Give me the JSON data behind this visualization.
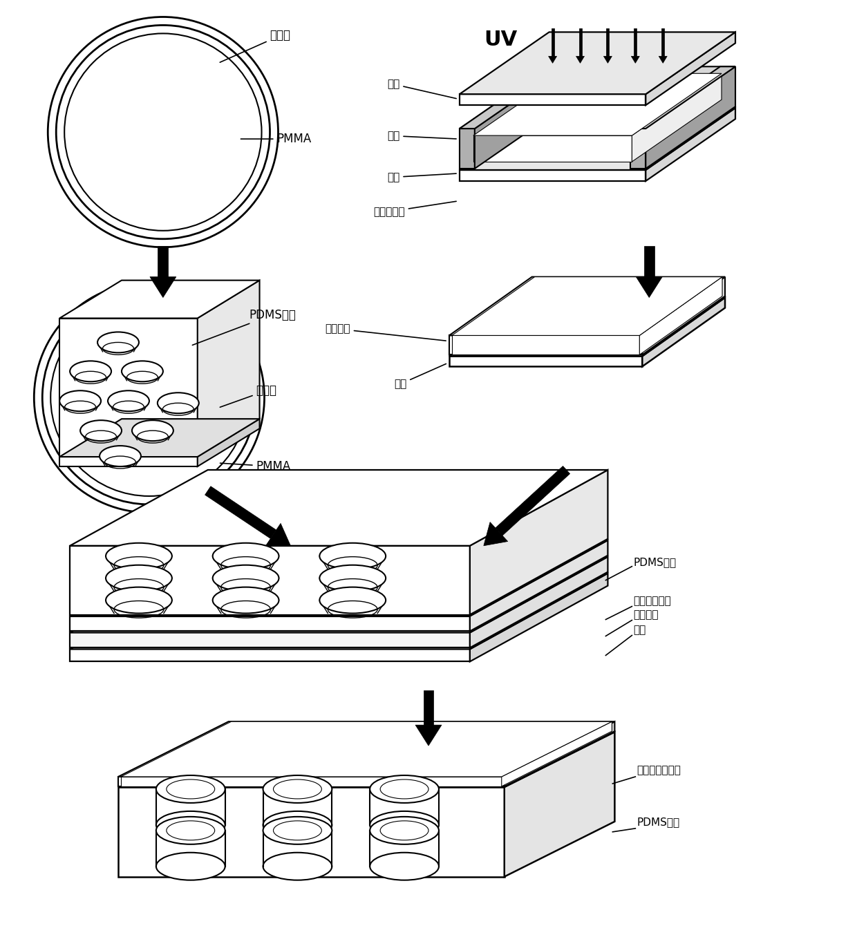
{
  "background_color": "#ffffff",
  "figure_width": 12.4,
  "figure_height": 13.69,
  "dpi": 100,
  "labels": {
    "adhesive_layer": "黏胶层",
    "pmma": "PMMA",
    "pdms_pit": "PDMS微坑",
    "glass": "玻片",
    "tape": "胶带",
    "prepolymer": "预聚物溶液",
    "uv": "UV",
    "superhydrophobic": "超疏水层",
    "patterned_adhesive": "图案化黏胶层",
    "patterned_super": "图案化超疏水层",
    "glass2": "玻片"
  }
}
